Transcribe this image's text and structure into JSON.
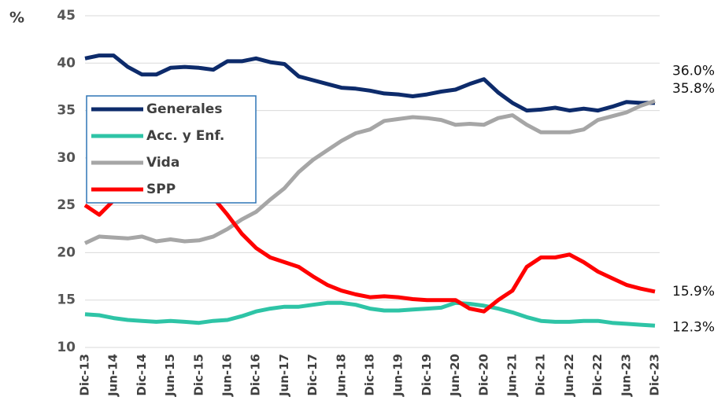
{
  "chart_data": {
    "type": "line",
    "y_label": "%",
    "categories": [
      "Dic-13",
      null,
      "Jun-14",
      null,
      "Dic-14",
      null,
      "Jun-15",
      null,
      "Dic-15",
      null,
      "Jun-16",
      null,
      "Dic-16",
      null,
      "Jun-17",
      null,
      "Dic-17",
      null,
      "Jun-18",
      null,
      "Dic-18",
      null,
      "Jun-19",
      null,
      "Dic-19",
      null,
      "Jun-20",
      null,
      "Dic-20",
      null,
      "Jun-21",
      null,
      "Dic-21",
      null,
      "Jun-22",
      null,
      "Dic-22",
      null,
      "Jun-23",
      null,
      "Dic-23"
    ],
    "series": [
      {
        "name": "Generales",
        "color": "#0d2b6b",
        "values": [
          40.5,
          40.8,
          40.8,
          39.6,
          38.8,
          38.8,
          39.5,
          39.6,
          39.5,
          39.3,
          40.2,
          40.2,
          40.5,
          40.1,
          39.9,
          38.6,
          38.2,
          37.8,
          37.4,
          37.3,
          37.1,
          36.8,
          36.7,
          36.5,
          36.7,
          37.0,
          37.2,
          37.8,
          38.3,
          36.9,
          35.8,
          35.0,
          35.1,
          35.3,
          35.0,
          35.2,
          35.0,
          35.4,
          35.9,
          35.8,
          35.8
        ],
        "value_labels": [
          null,
          null,
          null,
          null,
          null,
          null,
          null,
          null,
          null,
          null,
          null,
          null,
          null,
          null,
          null,
          null,
          null,
          null,
          null,
          null,
          null,
          null,
          null,
          null,
          null,
          null,
          null,
          null,
          null,
          null,
          null,
          null,
          null,
          null,
          null,
          null,
          null,
          null,
          null,
          null,
          "35.8%"
        ]
      },
      {
        "name": "Acc. y Enf.",
        "color": "#2ec4a6",
        "values": [
          13.5,
          13.4,
          13.1,
          12.9,
          12.8,
          12.7,
          12.8,
          12.7,
          12.6,
          12.8,
          12.9,
          13.3,
          13.8,
          14.1,
          14.3,
          14.3,
          14.5,
          14.7,
          14.7,
          14.5,
          14.1,
          13.9,
          13.9,
          14.0,
          14.1,
          14.2,
          14.7,
          14.6,
          14.4,
          14.1,
          13.7,
          13.2,
          12.8,
          12.7,
          12.7,
          12.8,
          12.8,
          12.6,
          12.5,
          12.4,
          12.3
        ],
        "value_labels": [
          null,
          null,
          null,
          null,
          null,
          null,
          null,
          null,
          null,
          null,
          null,
          null,
          null,
          null,
          null,
          null,
          null,
          null,
          null,
          null,
          null,
          null,
          null,
          null,
          null,
          null,
          null,
          null,
          null,
          null,
          null,
          null,
          null,
          null,
          null,
          null,
          null,
          null,
          null,
          null,
          "12.3%"
        ]
      },
      {
        "name": "Vida",
        "color": "#a6a6a6",
        "values": [
          21.0,
          21.7,
          21.6,
          21.5,
          21.7,
          21.2,
          21.4,
          21.2,
          21.3,
          21.7,
          22.5,
          23.5,
          24.3,
          25.6,
          26.8,
          28.5,
          29.8,
          30.8,
          31.8,
          32.6,
          33.0,
          33.9,
          34.1,
          34.3,
          34.2,
          34.0,
          33.5,
          33.6,
          33.5,
          34.2,
          34.5,
          33.5,
          32.7,
          32.7,
          32.7,
          33.0,
          34.0,
          34.4,
          34.8,
          35.5,
          36.0
        ],
        "value_labels": [
          null,
          null,
          null,
          null,
          null,
          null,
          null,
          null,
          null,
          null,
          null,
          null,
          null,
          null,
          null,
          null,
          null,
          null,
          null,
          null,
          null,
          null,
          null,
          null,
          null,
          null,
          null,
          null,
          null,
          null,
          null,
          null,
          null,
          null,
          null,
          null,
          null,
          null,
          null,
          null,
          "36.0%"
        ]
      },
      {
        "name": "SPP",
        "color": "#ff0000",
        "values": [
          25.0,
          24.0,
          25.5,
          26.2,
          26.5,
          26.5,
          26.5,
          26.5,
          26.3,
          25.8,
          24.0,
          22.0,
          20.5,
          19.5,
          19.0,
          18.5,
          17.5,
          16.6,
          16.0,
          15.6,
          15.3,
          15.4,
          15.3,
          15.1,
          15.0,
          15.0,
          15.0,
          14.1,
          13.8,
          15.0,
          16.0,
          18.5,
          19.5,
          19.5,
          19.8,
          19.0,
          18.0,
          17.3,
          16.6,
          16.2,
          15.9
        ],
        "value_labels": [
          null,
          null,
          null,
          null,
          null,
          null,
          null,
          null,
          null,
          null,
          null,
          null,
          null,
          null,
          null,
          null,
          null,
          null,
          null,
          null,
          null,
          null,
          null,
          null,
          null,
          null,
          null,
          null,
          null,
          null,
          null,
          null,
          null,
          null,
          null,
          null,
          null,
          null,
          null,
          null,
          "15.9%"
        ]
      }
    ],
    "ylim": [
      10,
      45
    ],
    "yticks": [
      10,
      15,
      20,
      25,
      30,
      35,
      40,
      45
    ],
    "grid": true,
    "legend": "upper left"
  }
}
